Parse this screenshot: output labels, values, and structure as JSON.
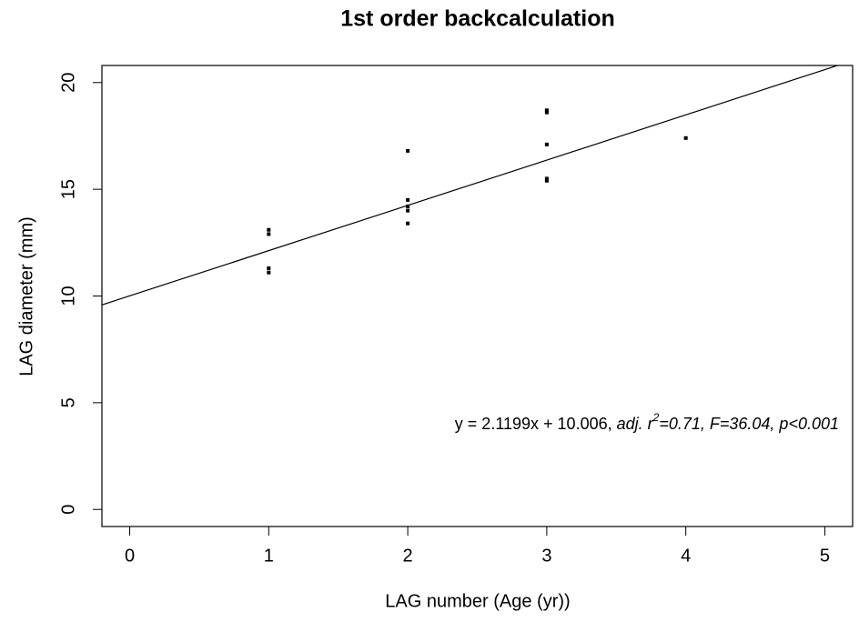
{
  "chart_data": {
    "type": "scatter",
    "title": "1st order backcalculation",
    "x_label": "LAG number (Age (yr))",
    "y_label": "LAG diameter (mm)",
    "x": [
      1,
      1,
      1,
      1,
      2,
      2,
      2,
      2,
      2,
      3,
      3,
      3,
      3,
      3,
      4
    ],
    "y": [
      13.1,
      12.9,
      11.3,
      11.1,
      16.8,
      14.5,
      14.2,
      14.0,
      13.4,
      18.7,
      18.6,
      17.1,
      15.5,
      15.4,
      17.4
    ],
    "color": "#000000",
    "regression": {
      "slope": 2.1199,
      "intercept": 10.006
    },
    "annotation": [
      "y = 2.1199x + 10.006, ",
      "adj. r",
      "2",
      "=0.71, F=36.04, p<0.001"
    ],
    "xlim": [
      -0.2,
      5.2
    ],
    "xticks": [
      0,
      1,
      2,
      3,
      4,
      5
    ],
    "ylim": [
      -0.8,
      20.8
    ],
    "yticks": [
      0,
      5,
      10,
      15,
      20
    ]
  }
}
